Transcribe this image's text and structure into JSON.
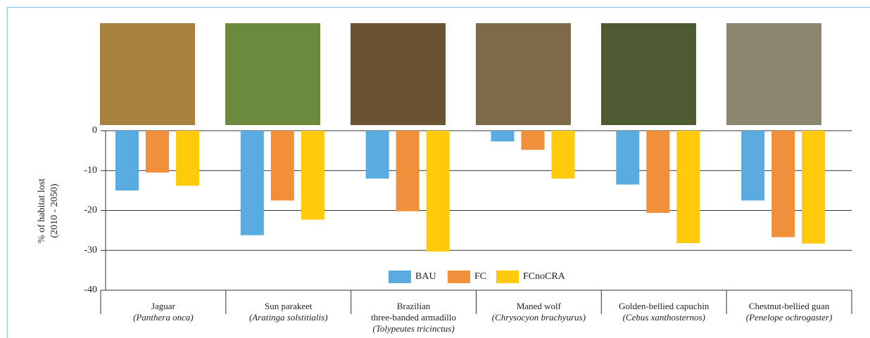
{
  "chart_data": {
    "type": "bar",
    "y_label": "% of habitat lost",
    "y_label_sub": "(2010 - 2050)",
    "categories": [
      "Jaguar",
      "Sun parakeet",
      "Brazilian\nthree-banded armadillo",
      "Maned wolf",
      "Golden-bellied capuchin",
      "Chestnut-bellied guan"
    ],
    "scientific_names": [
      "(Panthera onca)",
      "(Aratinga solstitialis)",
      "(Tolypeutes tricinctus)",
      "(Chrysocyon brachyurus)",
      "(Cebus xanthosternos)",
      "(Penelope ochrogaster)"
    ],
    "series": [
      {
        "name": "BAU",
        "color": "#5aabe0",
        "values": [
          -15,
          -26.2,
          -12,
          -2.7,
          -13.5,
          -17.5
        ]
      },
      {
        "name": "FC",
        "color": "#f28f3b",
        "values": [
          -10.5,
          -17.5,
          -20.2,
          -4.8,
          -20.6,
          -26.7
        ]
      },
      {
        "name": "FCnoCRA",
        "color": "#ffc90c",
        "values": [
          -13.8,
          -22.3,
          -30.3,
          -12,
          -28.2,
          -28.3
        ]
      }
    ],
    "ylim": [
      -40,
      0
    ],
    "yticks": [
      0,
      -10,
      -20,
      -30,
      -40
    ],
    "grid": true,
    "legend": "bottom"
  }
}
